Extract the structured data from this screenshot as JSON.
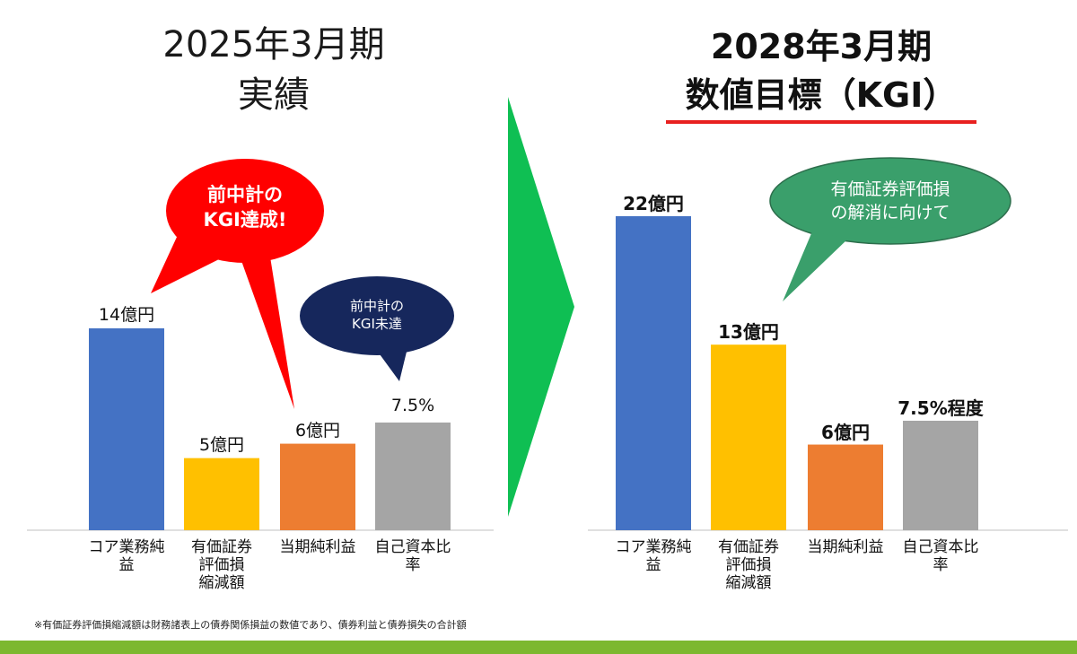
{
  "left_panel": {
    "title_line1": "2025年3月期",
    "title_line2": "実績"
  },
  "right_panel": {
    "title_line1": "2028年3月期",
    "title_line2": "数値目標（KGI）"
  },
  "callouts": {
    "achieved_line1": "前中計の",
    "achieved_line2": "KGI達成!",
    "not_achieved_line1": "前中計の",
    "not_achieved_line2": "KGI未達",
    "resolve_line1": "有価証券評価損",
    "resolve_line2": "の解消に向けて"
  },
  "footnote": "※有価証券評価損縮減額は財務諸表上の債券関係損益の数値であり、債券利益と債券損失の合計額",
  "colors": {
    "blue": "#4472c4",
    "yellow": "#ffc000",
    "orange": "#ed7d31",
    "gray": "#a5a5a5",
    "red": "#e8201f",
    "navy": "#16275c",
    "green_bubble": "#3a9f6b",
    "arrow_green": "#0fbf53",
    "band_green": "#7cb82f"
  },
  "chart_data": [
    {
      "type": "bar",
      "title": "2025年3月期 実績",
      "categories": [
        [
          "コア業務純益"
        ],
        [
          "有価証券",
          "評価損",
          "縮減額"
        ],
        [
          "当期純利益"
        ],
        [
          "自己資本比率"
        ]
      ],
      "values": [
        14,
        5,
        6,
        7.5
      ],
      "value_labels": [
        "14億円",
        "5億円",
        "6億円",
        "7.5%"
      ],
      "bar_colors": [
        "#4472c4",
        "#ffc000",
        "#ed7d31",
        "#a5a5a5"
      ]
    },
    {
      "type": "bar",
      "title": "2028年3月期 数値目標（KGI）",
      "categories": [
        [
          "コア業務純益"
        ],
        [
          "有価証券",
          "評価損",
          "縮減額"
        ],
        [
          "当期純利益"
        ],
        [
          "自己資本比率"
        ]
      ],
      "values": [
        22,
        13,
        6,
        7.5
      ],
      "value_labels": [
        "22億円",
        "13億円",
        "6億円",
        "7.5%程度"
      ],
      "bar_colors": [
        "#4472c4",
        "#ffc000",
        "#ed7d31",
        "#a5a5a5"
      ]
    }
  ]
}
